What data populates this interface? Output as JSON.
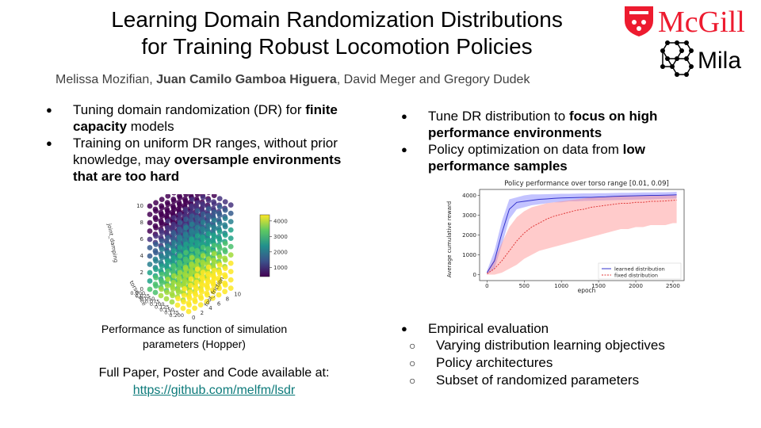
{
  "title_line1": "Learning Domain Randomization Distributions",
  "title_line2": "for Training Robust Locomotion Policies",
  "authors": {
    "a1": "Melissa Mozifian, ",
    "a2": "Juan Camilo Gamboa Higuera",
    "a3": ", David Meger and Gregory Dudek"
  },
  "logos": {
    "mcgill": "McGill",
    "mila": "Mila"
  },
  "left_bullets": [
    {
      "pre": "Tuning domain randomization (DR) for ",
      "bold": "finite capacity",
      "post": " models"
    },
    {
      "pre": "Training on uniform DR ranges, without prior knowledge, may ",
      "bold": "oversample environments that are too hard",
      "post": ""
    }
  ],
  "figure_caption": "Performance as function of simulation parameters (Hopper)",
  "full_paper_text": "Full Paper, Poster and Code available at:",
  "full_paper_link": "https://github.com/melfm/lsdr",
  "right_bullets": [
    {
      "pre": "Tune DR distribution to ",
      "bold": "focus on high performance environments",
      "post": ""
    },
    {
      "pre": "Policy optimization on data from ",
      "bold": "low performance samples",
      "post": ""
    }
  ],
  "eval_bullet": "Empirical evaluation",
  "eval_sub": [
    "Varying distribution learning objectives",
    "Policy architectures",
    "Subset of randomized parameters"
  ],
  "cube_plot": {
    "zlabel": "joint_damping",
    "xlabel": "foot_friction",
    "ylabel": "torso_size",
    "z_ticks": [
      "0",
      "2",
      "4",
      "6",
      "8",
      "10"
    ],
    "y_ticks": [
      "0.000",
      "0.025",
      "0.050",
      "0.075",
      "0.100",
      "0.125",
      "0.150",
      "0.175",
      "0.200"
    ],
    "x_ticks": [
      "0",
      "2",
      "4",
      "6",
      "8",
      "10"
    ],
    "colorbar_ticks": [
      "1000",
      "2000",
      "3000",
      "4000"
    ]
  },
  "chart_data": {
    "type": "line",
    "title": "Policy performance over torso range [0.01, 0.09]",
    "xlabel": "epoch",
    "ylabel": "Average cumulative reward",
    "xlim": [
      -100,
      2650
    ],
    "ylim": [
      -300,
      4300
    ],
    "x_ticks": [
      0,
      500,
      1000,
      1500,
      2000,
      2500
    ],
    "y_ticks": [
      0,
      1000,
      2000,
      3000,
      4000
    ],
    "legend_position": "bottom-right",
    "x": [
      0,
      100,
      200,
      300,
      400,
      500,
      600,
      700,
      800,
      900,
      1000,
      1100,
      1200,
      1300,
      1400,
      1500,
      1600,
      1700,
      1800,
      1900,
      2000,
      2100,
      2200,
      2300,
      2400,
      2500,
      2550
    ],
    "series": [
      {
        "name": "learned distribution",
        "color": "#3333cc",
        "band_color": "#7b7bff",
        "values": [
          100,
          700,
          2100,
          3300,
          3650,
          3700,
          3750,
          3800,
          3820,
          3850,
          3870,
          3880,
          3890,
          3900,
          3900,
          3920,
          3930,
          3950,
          3960,
          3970,
          3980,
          3990,
          4000,
          4000,
          4010,
          4020,
          4030
        ],
        "lower": [
          0,
          300,
          1500,
          2800,
          3300,
          3400,
          3500,
          3550,
          3600,
          3650,
          3650,
          3700,
          3700,
          3720,
          3730,
          3740,
          3750,
          3760,
          3770,
          3780,
          3790,
          3800,
          3800,
          3820,
          3830,
          3840,
          3850
        ],
        "upper": [
          200,
          1200,
          2700,
          3800,
          3900,
          4000,
          4050,
          4050,
          4060,
          4070,
          4080,
          4080,
          4090,
          4100,
          4100,
          4110,
          4110,
          4120,
          4130,
          4130,
          4140,
          4150,
          4150,
          4160,
          4160,
          4170,
          4180
        ]
      },
      {
        "name": "fixed distribution",
        "color": "#e03a3a",
        "band_color": "#ff8c8c",
        "values": [
          50,
          300,
          700,
          1200,
          1700,
          2100,
          2400,
          2600,
          2800,
          2950,
          3050,
          3150,
          3250,
          3300,
          3400,
          3450,
          3500,
          3550,
          3600,
          3600,
          3650,
          3650,
          3700,
          3700,
          3720,
          3750,
          3760
        ],
        "lower": [
          0,
          0,
          100,
          300,
          500,
          800,
          1000,
          1200,
          1300,
          1400,
          1500,
          1600,
          1700,
          1800,
          1900,
          2000,
          2100,
          2200,
          2300,
          2300,
          2400,
          2400,
          2500,
          2500,
          2500,
          2600,
          2600
        ],
        "upper": [
          150,
          800,
          1600,
          2400,
          2900,
          3200,
          3400,
          3500,
          3600,
          3650,
          3700,
          3750,
          3800,
          3850,
          3900,
          3900,
          3950,
          3950,
          4000,
          4000,
          4000,
          4000,
          4000,
          4000,
          4000,
          4000,
          4000
        ]
      }
    ]
  }
}
